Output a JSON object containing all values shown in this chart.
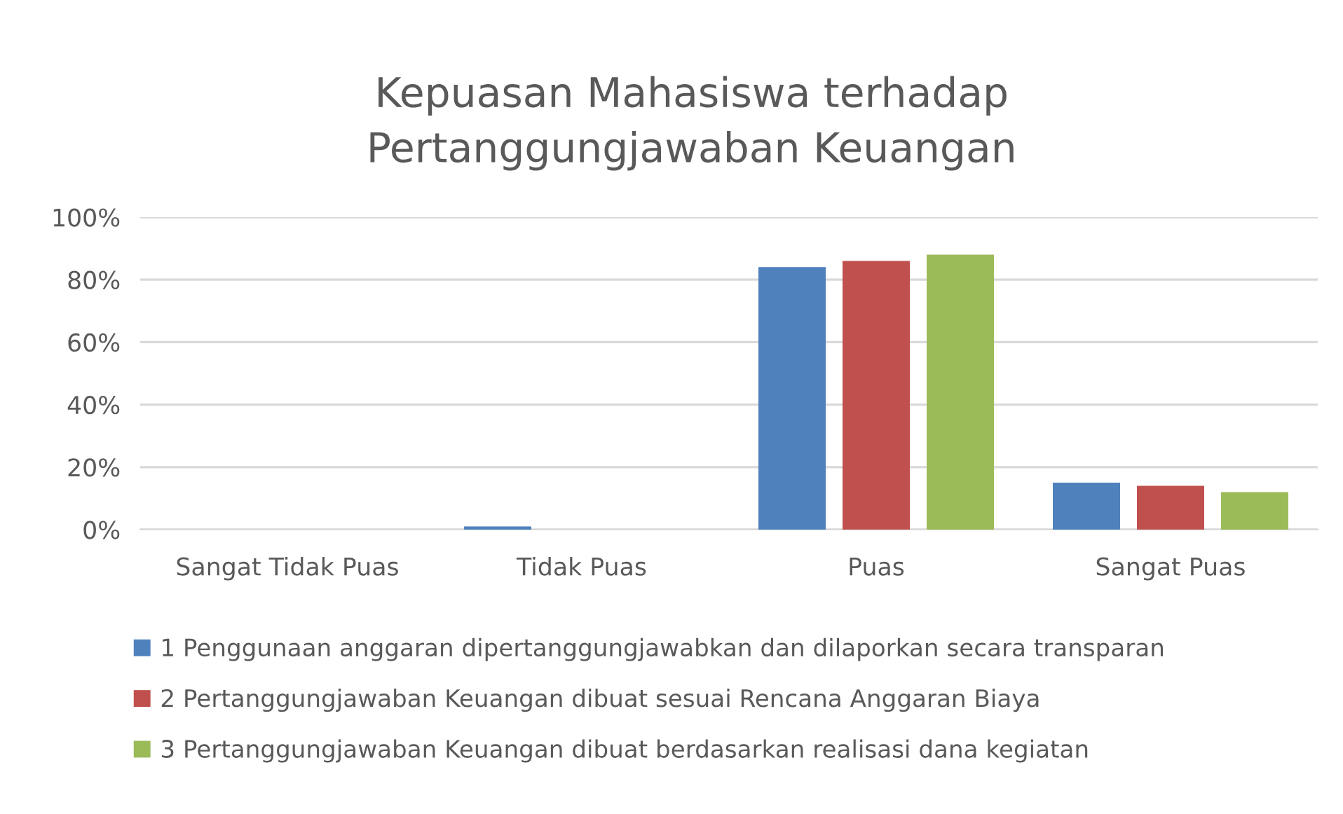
{
  "chart_data": {
    "type": "bar",
    "title": "Kepuasan Mahasiswa terhadap\nPertanggungjawaban Keuangan",
    "categories": [
      "Sangat Tidak Puas",
      "Tidak Puas",
      "Puas",
      "Sangat Puas"
    ],
    "series": [
      {
        "name": "1 Penggunaan anggaran dipertanggungjawabkan dan dilaporkan secara transparan",
        "color": "#4f81bd",
        "values": [
          0,
          1,
          84,
          15
        ]
      },
      {
        "name": "2 Pertanggungjawaban Keuangan dibuat sesuai Rencana Anggaran Biaya",
        "color": "#c0504d",
        "values": [
          0,
          0,
          86,
          14
        ]
      },
      {
        "name": "3 Pertanggungjawaban Keuangan dibuat berdasarkan realisasi dana kegiatan",
        "color": "#9bbb59",
        "values": [
          0,
          0,
          88,
          12
        ]
      }
    ],
    "ylim": [
      0,
      100
    ],
    "yticks": [
      {
        "value": 0,
        "label": "0%"
      },
      {
        "value": 20,
        "label": "20%"
      },
      {
        "value": 40,
        "label": "40%"
      },
      {
        "value": 60,
        "label": "60%"
      },
      {
        "value": 80,
        "label": "80%"
      },
      {
        "value": 100,
        "label": "100%"
      }
    ],
    "grid": "y",
    "legend": "bottom"
  }
}
